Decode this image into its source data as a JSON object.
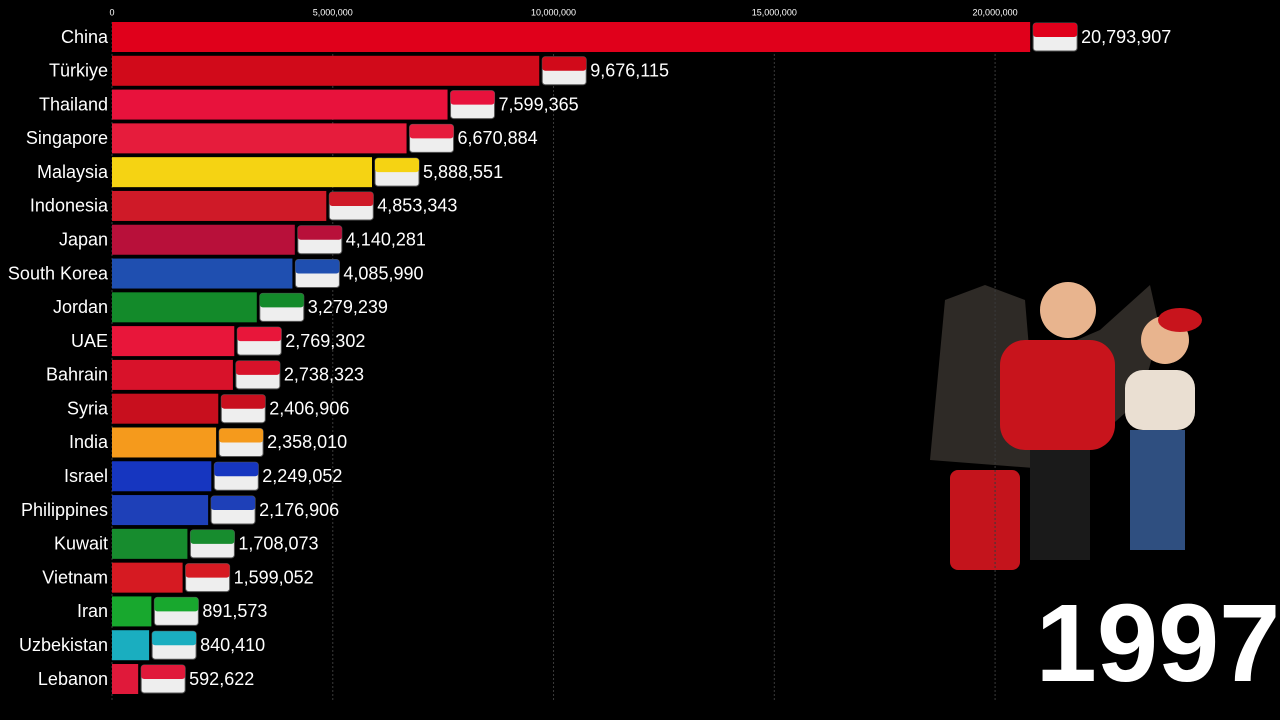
{
  "chart_data": {
    "type": "barh",
    "categories": [
      "China",
      "Türkiye",
      "Thailand",
      "Singapore",
      "Malaysia",
      "Indonesia",
      "Japan",
      "South Korea",
      "Jordan",
      "UAE",
      "Bahrain",
      "Syria",
      "India",
      "Israel",
      "Philippines",
      "Kuwait",
      "Vietnam",
      "Iran",
      "Uzbekistan",
      "Lebanon"
    ],
    "values": [
      20793907,
      9676115,
      7599365,
      6670884,
      5888551,
      4853343,
      4140281,
      4085990,
      3279239,
      2769302,
      2738323,
      2406906,
      2358010,
      2249052,
      2176906,
      1708073,
      1599052,
      891573,
      840410,
      592622
    ],
    "value_labels": [
      "20,793,907",
      "9,676,115",
      "7,599,365",
      "6,670,884",
      "5,888,551",
      "4,853,343",
      "4,140,281",
      "4,085,990",
      "3,279,239",
      "2,769,302",
      "2,738,323",
      "2,406,906",
      "2,358,010",
      "2,249,052",
      "2,176,906",
      "1,708,073",
      "1,599,052",
      "891,573",
      "840,410",
      "592,622"
    ],
    "colors": [
      "#e0001b",
      "#d10a1a",
      "#e8123c",
      "#e61c3c",
      "#f5d313",
      "#cf1a28",
      "#b8103a",
      "#1f4fb0",
      "#138a2a",
      "#e8163a",
      "#d8122a",
      "#c80f1e",
      "#f59a1c",
      "#1636c0",
      "#1e40b8",
      "#178c2e",
      "#d61a22",
      "#18a82e",
      "#1aaec0",
      "#e0193a"
    ],
    "xlim": [
      0,
      26000000
    ],
    "xticks": [
      0,
      {
        "value": 5000000,
        "label": "5,000,000"
      },
      {
        "value": 10000000,
        "label": "10,000,000"
      },
      {
        "value": 15000000,
        "label": "15,000,000"
      },
      {
        "value": 20000000,
        "label": "20,000,000"
      }
    ],
    "grid": true,
    "year": "1997"
  }
}
